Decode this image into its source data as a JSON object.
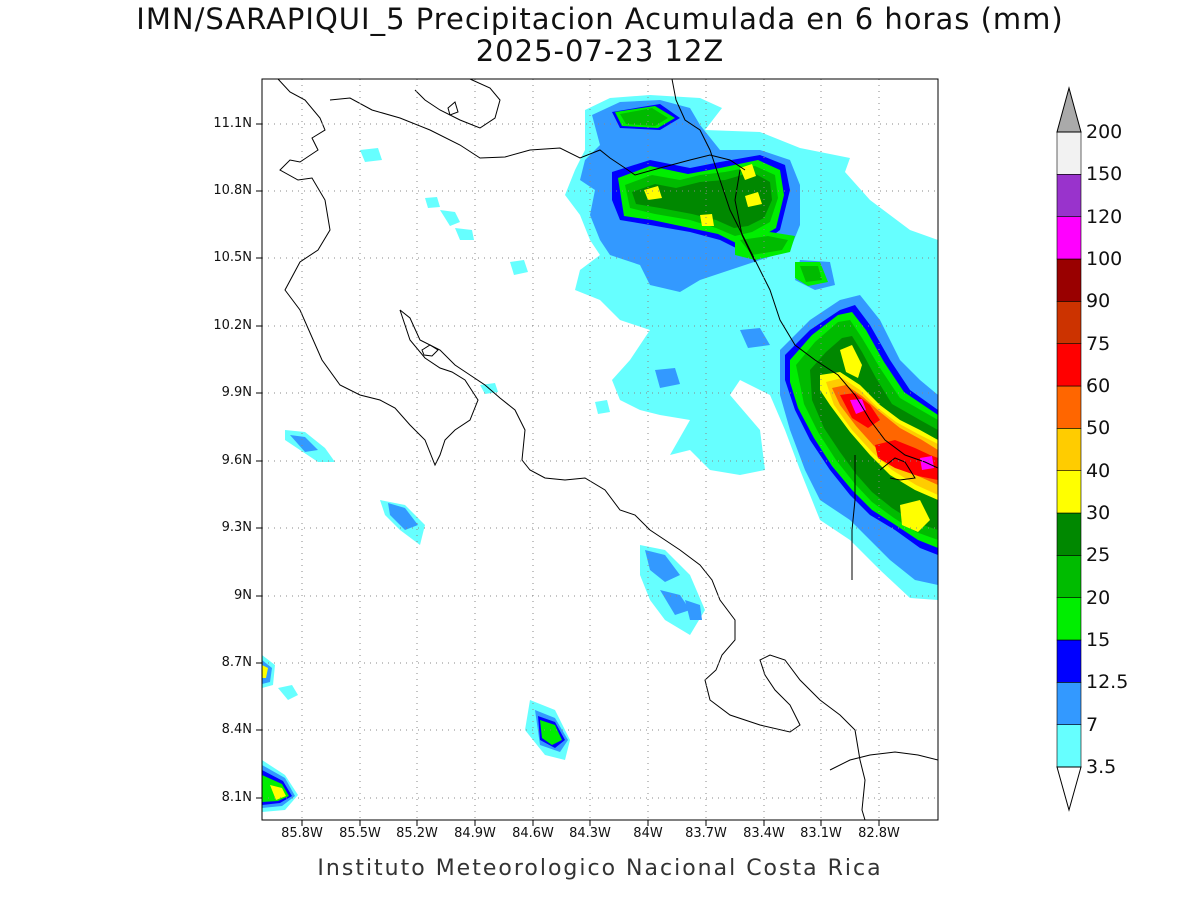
{
  "title": {
    "line1": "IMN/SARAPIQUI_5 Precipitacion Acumulada en 6 horas (mm)",
    "line2": "2025-07-23 12Z"
  },
  "footer": "Instituto Meteorologico Nacional Costa Rica",
  "map": {
    "lon_range": [
      -86.0,
      -82.6
    ],
    "lat_range": [
      8.0,
      11.3
    ],
    "lat_ticks": [
      "11.1N",
      "10.8N",
      "10.5N",
      "10.2N",
      "9.9N",
      "9.6N",
      "9.3N",
      "9N",
      "8.7N",
      "8.4N",
      "8.1N"
    ],
    "lon_ticks": [
      "85.8W",
      "85.5W",
      "85.2W",
      "84.9W",
      "84.6W",
      "84.3W",
      "84W",
      "83.7W",
      "83.4W",
      "83.1W",
      "82.8W"
    ],
    "grid": "dotted"
  },
  "colorbar": {
    "levels": [
      "200",
      "150",
      "120",
      "100",
      "90",
      "75",
      "60",
      "50",
      "40",
      "30",
      "25",
      "20",
      "15",
      "12.5",
      "7",
      "3.5"
    ],
    "colors": [
      "#f2f2f2",
      "#9933cc",
      "#ff00ff",
      "#990000",
      "#cc3300",
      "#ff0000",
      "#ff6600",
      "#ffcc00",
      "#ffff00",
      "#008800",
      "#00bb00",
      "#00ee00",
      "#0000ff",
      "#3399ff",
      "#66ffff"
    ],
    "top_arrow_color": "#aaaaaa",
    "bottom_arrow_color": "#ffffff"
  }
}
